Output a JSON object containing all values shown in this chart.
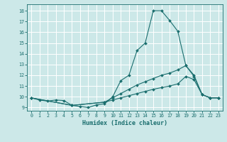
{
  "xlabel": "Humidex (Indice chaleur)",
  "bg_color": "#cce8e8",
  "grid_color": "#ffffff",
  "line_color": "#1a6e6e",
  "xlim": [
    -0.5,
    23.5
  ],
  "ylim": [
    8.7,
    18.6
  ],
  "x_ticks": [
    0,
    1,
    2,
    3,
    4,
    5,
    6,
    7,
    8,
    9,
    10,
    11,
    12,
    13,
    14,
    15,
    16,
    17,
    18,
    19,
    20,
    21,
    22,
    23
  ],
  "y_ticks": [
    9,
    10,
    11,
    12,
    13,
    14,
    15,
    16,
    17,
    18
  ],
  "series": [
    {
      "x": [
        0,
        1,
        2,
        3,
        4,
        5,
        6,
        7,
        8,
        9,
        10,
        11,
        12,
        13,
        14,
        15,
        16,
        17,
        18,
        19,
        20,
        21,
        22,
        23
      ],
      "y": [
        9.9,
        9.7,
        9.6,
        9.7,
        9.65,
        9.2,
        9.1,
        9.0,
        9.25,
        9.35,
        10.0,
        11.5,
        12.0,
        14.3,
        15.0,
        18.0,
        18.0,
        17.1,
        16.1,
        12.9,
        12.0,
        10.2,
        9.9,
        9.9
      ]
    },
    {
      "x": [
        0,
        5,
        9,
        10,
        11,
        12,
        13,
        14,
        15,
        16,
        17,
        18,
        19,
        20,
        21,
        22,
        23
      ],
      "y": [
        9.9,
        9.2,
        9.5,
        9.9,
        10.3,
        10.7,
        11.1,
        11.4,
        11.7,
        12.0,
        12.2,
        12.5,
        12.9,
        11.9,
        10.2,
        9.9,
        9.9
      ]
    },
    {
      "x": [
        0,
        5,
        9,
        10,
        11,
        12,
        13,
        14,
        15,
        16,
        17,
        18,
        19,
        20,
        21,
        22,
        23
      ],
      "y": [
        9.9,
        9.2,
        9.5,
        9.7,
        9.9,
        10.1,
        10.3,
        10.5,
        10.7,
        10.85,
        11.0,
        11.2,
        11.9,
        11.6,
        10.2,
        9.9,
        9.9
      ]
    }
  ]
}
